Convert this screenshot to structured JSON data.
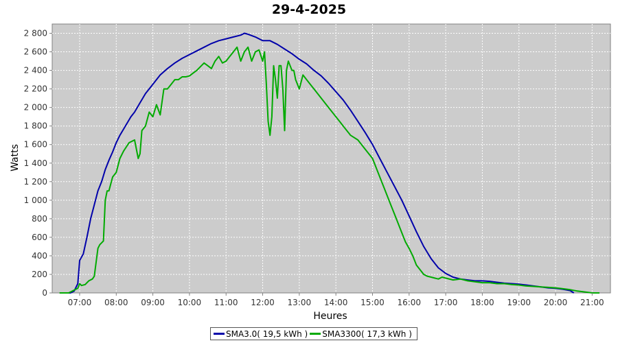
{
  "chart_data": {
    "type": "line",
    "title": "29-4-2025",
    "xlabel": "Heures",
    "ylabel": "Watts",
    "xlim": [
      6.25,
      21.5
    ],
    "ylim": [
      0,
      2900
    ],
    "x_ticks": [
      7,
      8,
      9,
      10,
      11,
      12,
      13,
      14,
      15,
      16,
      17,
      18,
      19,
      20,
      21
    ],
    "x_tick_labels": [
      "07:00",
      "08:00",
      "09:00",
      "10:00",
      "11:00",
      "12:00",
      "13:00",
      "14:00",
      "15:00",
      "16:00",
      "17:00",
      "18:00",
      "19:00",
      "20:00",
      "21:00"
    ],
    "y_ticks": [
      0,
      200,
      400,
      600,
      800,
      1000,
      1200,
      1400,
      1600,
      1800,
      2000,
      2200,
      2400,
      2600,
      2800
    ],
    "y_tick_labels": [
      "0",
      "200",
      "400",
      "600",
      "800",
      "1 000",
      "1 200",
      "1 400",
      "1 600",
      "1 800",
      "2 000",
      "2 200",
      "2 400",
      "2 600",
      "2 800"
    ],
    "grid": true,
    "legend_position": "bottom-center",
    "plot_background": "#cccccc",
    "series": [
      {
        "name": "SMA3.0",
        "legend_label": "SMA3.0( 19,5 kWh )",
        "color": "#0000aa",
        "x": [
          6.5,
          6.75,
          6.85,
          6.95,
          7.0,
          7.1,
          7.2,
          7.3,
          7.4,
          7.5,
          7.6,
          7.7,
          7.8,
          7.9,
          8.0,
          8.1,
          8.25,
          8.4,
          8.5,
          8.65,
          8.8,
          9.0,
          9.2,
          9.4,
          9.6,
          9.8,
          10.0,
          10.2,
          10.4,
          10.6,
          10.8,
          11.0,
          11.2,
          11.4,
          11.5,
          11.6,
          11.8,
          12.0,
          12.2,
          12.4,
          12.6,
          12.8,
          13.0,
          13.2,
          13.4,
          13.6,
          13.8,
          14.0,
          14.2,
          14.4,
          14.6,
          14.8,
          15.0,
          15.2,
          15.4,
          15.6,
          15.8,
          16.0,
          16.2,
          16.4,
          16.6,
          16.8,
          17.0,
          17.2,
          17.4,
          17.6,
          17.8,
          18.0,
          18.2,
          18.4,
          18.6,
          18.8,
          19.0,
          19.2,
          19.4,
          19.6,
          19.8,
          20.0,
          20.2,
          20.4,
          20.5
        ],
        "y": [
          0,
          0,
          20,
          100,
          350,
          420,
          600,
          800,
          950,
          1100,
          1200,
          1330,
          1430,
          1520,
          1620,
          1700,
          1800,
          1900,
          1950,
          2050,
          2150,
          2250,
          2350,
          2420,
          2480,
          2530,
          2570,
          2610,
          2650,
          2690,
          2720,
          2740,
          2760,
          2780,
          2800,
          2790,
          2760,
          2720,
          2720,
          2680,
          2630,
          2580,
          2520,
          2470,
          2400,
          2340,
          2260,
          2170,
          2080,
          1970,
          1850,
          1730,
          1600,
          1450,
          1300,
          1150,
          1000,
          830,
          660,
          500,
          370,
          270,
          210,
          170,
          150,
          140,
          130,
          130,
          125,
          115,
          105,
          100,
          95,
          85,
          75,
          65,
          55,
          50,
          40,
          25,
          0
        ]
      },
      {
        "name": "SMA3300",
        "legend_label": "SMA3300( 17,3 kWh )",
        "color": "#00aa00",
        "x": [
          6.45,
          6.7,
          6.85,
          6.95,
          7.0,
          7.05,
          7.15,
          7.25,
          7.35,
          7.4,
          7.5,
          7.55,
          7.65,
          7.7,
          7.75,
          7.8,
          7.9,
          8.0,
          8.1,
          8.2,
          8.35,
          8.5,
          8.6,
          8.65,
          8.7,
          8.8,
          8.9,
          9.0,
          9.1,
          9.2,
          9.3,
          9.4,
          9.5,
          9.6,
          9.7,
          9.8,
          9.9,
          10.0,
          10.1,
          10.2,
          10.4,
          10.5,
          10.6,
          10.7,
          10.8,
          10.9,
          11.0,
          11.1,
          11.2,
          11.3,
          11.4,
          11.5,
          11.6,
          11.7,
          11.8,
          11.9,
          12.0,
          12.05,
          12.1,
          12.15,
          12.2,
          12.25,
          12.3,
          12.35,
          12.4,
          12.45,
          12.5,
          12.55,
          12.6,
          12.65,
          12.7,
          12.75,
          12.8,
          12.85,
          12.9,
          13.0,
          13.1,
          13.2,
          13.3,
          13.4,
          13.5,
          13.6,
          13.8,
          14.0,
          14.1,
          14.2,
          14.4,
          14.6,
          14.8,
          15.0,
          15.1,
          15.2,
          15.3,
          15.4,
          15.5,
          15.6,
          15.7,
          15.8,
          15.9,
          16.0,
          16.1,
          16.2,
          16.3,
          16.4,
          16.5,
          16.6,
          16.7,
          16.8,
          16.9,
          17.0,
          17.2,
          17.4,
          17.6,
          17.8,
          18.0,
          18.2,
          18.4,
          18.6,
          18.8,
          19.0,
          19.2,
          19.4,
          19.6,
          19.8,
          20.0,
          20.2,
          20.4,
          20.6,
          20.8,
          21.0,
          21.2
        ],
        "y": [
          0,
          0,
          30,
          50,
          100,
          80,
          90,
          130,
          150,
          180,
          480,
          520,
          560,
          1000,
          1100,
          1100,
          1250,
          1300,
          1450,
          1530,
          1620,
          1650,
          1450,
          1500,
          1750,
          1800,
          1950,
          1900,
          2030,
          1920,
          2200,
          2200,
          2250,
          2300,
          2300,
          2330,
          2330,
          2340,
          2370,
          2400,
          2480,
          2450,
          2420,
          2500,
          2550,
          2480,
          2500,
          2550,
          2600,
          2650,
          2500,
          2600,
          2650,
          2500,
          2600,
          2620,
          2500,
          2600,
          2250,
          1850,
          1700,
          1900,
          2450,
          2300,
          2100,
          2450,
          2450,
          2200,
          1750,
          2400,
          2500,
          2450,
          2400,
          2400,
          2300,
          2200,
          2350,
          2300,
          2250,
          2200,
          2150,
          2100,
          2000,
          1900,
          1850,
          1800,
          1700,
          1650,
          1550,
          1450,
          1350,
          1250,
          1150,
          1050,
          950,
          850,
          750,
          650,
          550,
          480,
          400,
          300,
          250,
          200,
          180,
          170,
          160,
          150,
          170,
          160,
          140,
          150,
          130,
          120,
          110,
          110,
          100,
          100,
          90,
          85,
          75,
          70,
          65,
          60,
          55,
          45,
          35,
          20,
          10,
          0,
          0
        ]
      }
    ]
  }
}
